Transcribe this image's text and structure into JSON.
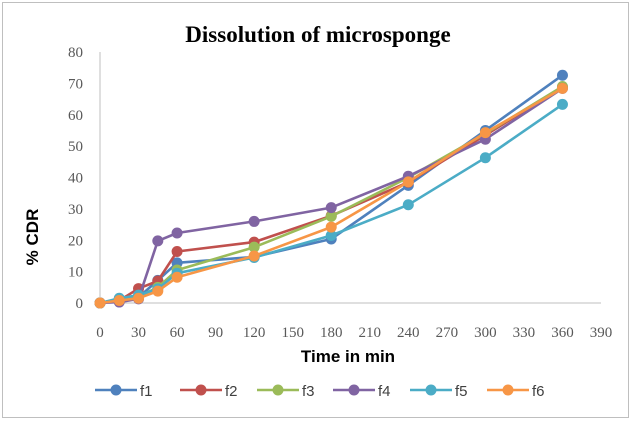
{
  "chart_data": {
    "type": "line",
    "title": "Dissolution of microsponge",
    "xlabel": "Time in min",
    "ylabel": "% CDR",
    "xlim": [
      0,
      390
    ],
    "ylim": [
      0,
      80
    ],
    "xticks": [
      0,
      30,
      60,
      90,
      120,
      150,
      180,
      210,
      240,
      270,
      300,
      330,
      360,
      390
    ],
    "yticks": [
      0,
      10,
      20,
      30,
      40,
      50,
      60,
      70,
      80
    ],
    "x": [
      0,
      15,
      30,
      45,
      60,
      120,
      180,
      240,
      300,
      360
    ],
    "grid": false,
    "legend_position": "bottom",
    "series": [
      {
        "name": "f1",
        "color": "#4F81BD",
        "values": [
          0,
          1.2,
          1.8,
          7.2,
          12.8,
          14.7,
          20.4,
          37.5,
          55.0,
          72.6
        ]
      },
      {
        "name": "f2",
        "color": "#C0504D",
        "values": [
          0,
          0.8,
          4.6,
          7.0,
          16.4,
          19.4,
          27.8,
          38.5,
          53.5,
          68.7
        ]
      },
      {
        "name": "f3",
        "color": "#9BBB59",
        "values": [
          0,
          0.8,
          2.0,
          5.0,
          10.5,
          17.8,
          27.6,
          40.0,
          54.0,
          69.0
        ]
      },
      {
        "name": "f4",
        "color": "#8064A2",
        "values": [
          0,
          0.3,
          1.3,
          19.8,
          22.3,
          26.0,
          30.4,
          40.4,
          52.2,
          68.4
        ]
      },
      {
        "name": "f5",
        "color": "#4BACC6",
        "values": [
          0,
          1.5,
          2.5,
          4.5,
          9.5,
          14.5,
          21.5,
          31.3,
          46.3,
          63.3
        ]
      },
      {
        "name": "f6",
        "color": "#F79646",
        "values": [
          0,
          0.8,
          1.5,
          3.8,
          8.2,
          15.0,
          24.2,
          38.6,
          54.3,
          68.4
        ]
      }
    ]
  }
}
